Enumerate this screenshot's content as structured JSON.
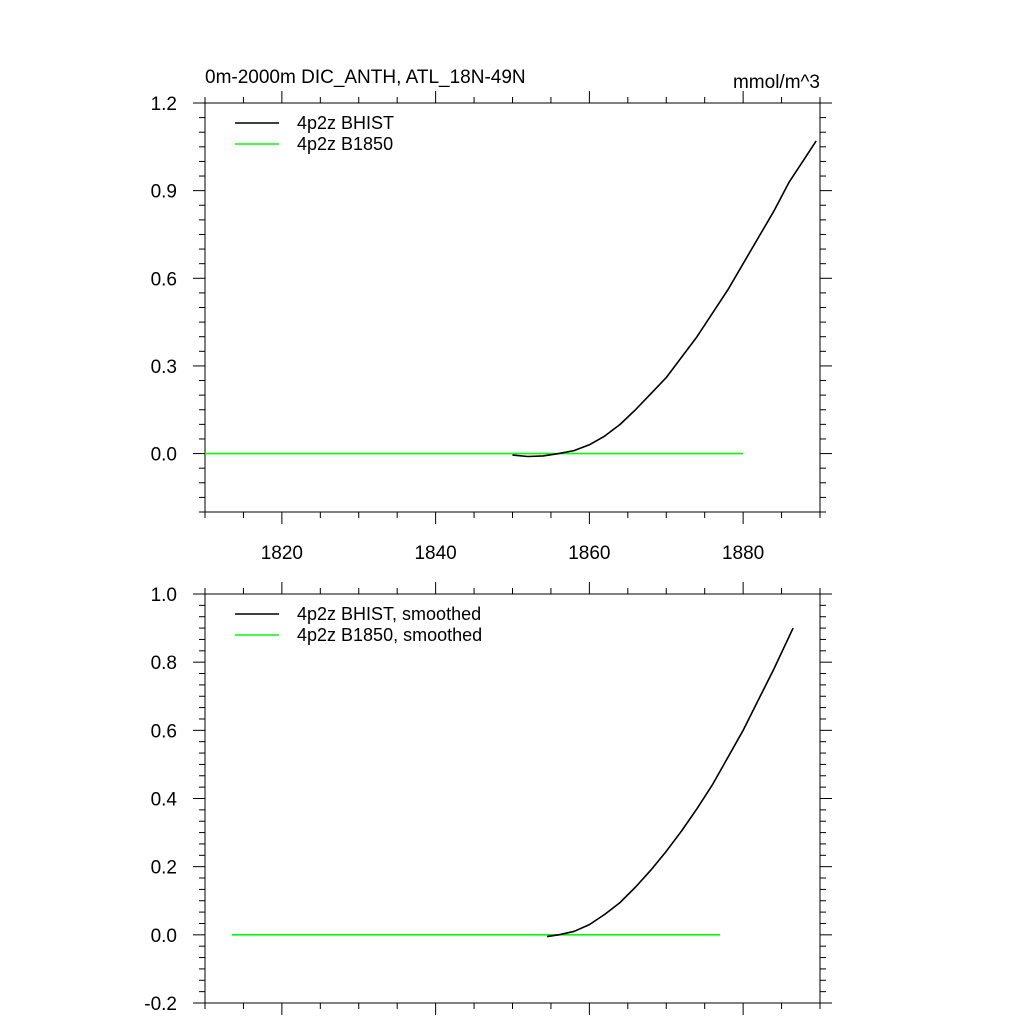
{
  "chart_data": [
    {
      "type": "line",
      "title": "0m-2000m DIC_ANTH, ATL_18N-49N",
      "units": "mmol/m^3",
      "xlim": [
        1810,
        1890
      ],
      "ylim": [
        -0.2,
        1.2
      ],
      "x_ticks": [
        1820,
        1840,
        1860,
        1880
      ],
      "x_tick_labels": [
        "1820",
        "1840",
        "1860",
        "1880"
      ],
      "y_ticks": [
        0.0,
        0.3,
        0.6,
        0.9,
        1.2
      ],
      "y_tick_labels": [
        "0.0",
        "0.3",
        "0.6",
        "0.9",
        "1.2"
      ],
      "legend_position": "top-left",
      "series": [
        {
          "name": "4p2z BHIST",
          "color": "#000000",
          "x": [
            1850,
            1852,
            1854,
            1856,
            1858,
            1860,
            1862,
            1864,
            1866,
            1868,
            1870,
            1872,
            1874,
            1876,
            1878,
            1880,
            1882,
            1884,
            1886,
            1888,
            1889.5
          ],
          "y": [
            -0.005,
            -0.01,
            -0.008,
            0.0,
            0.01,
            0.03,
            0.06,
            0.1,
            0.15,
            0.205,
            0.26,
            0.33,
            0.4,
            0.48,
            0.56,
            0.65,
            0.74,
            0.83,
            0.93,
            1.01,
            1.07
          ]
        },
        {
          "name": "4p2z B1850",
          "color": "#00ff00",
          "x": [
            1810,
            1820,
            1830,
            1840,
            1850,
            1860,
            1870,
            1880
          ],
          "y": [
            0,
            0,
            0,
            0,
            0,
            0,
            0,
            0
          ]
        }
      ]
    },
    {
      "type": "line",
      "title": "",
      "xlim": [
        1810,
        1890
      ],
      "ylim": [
        -0.2,
        1.0
      ],
      "x_ticks": [
        1820,
        1840,
        1860,
        1880
      ],
      "x_tick_labels": [],
      "y_ticks": [
        -0.2,
        0.0,
        0.2,
        0.4,
        0.6,
        0.8,
        1.0
      ],
      "y_tick_labels": [
        "-0.2",
        "0.0",
        "0.2",
        "0.4",
        "0.6",
        "0.8",
        "1.0"
      ],
      "legend_position": "top-left",
      "series": [
        {
          "name": "4p2z BHIST, smoothed",
          "color": "#000000",
          "x": [
            1854.5,
            1856,
            1858,
            1860,
            1862,
            1864,
            1866,
            1868,
            1870,
            1872,
            1874,
            1876,
            1878,
            1880,
            1882,
            1884,
            1886.5
          ],
          "y": [
            -0.005,
            0.0,
            0.01,
            0.03,
            0.06,
            0.095,
            0.14,
            0.19,
            0.245,
            0.305,
            0.37,
            0.44,
            0.52,
            0.6,
            0.69,
            0.78,
            0.9
          ]
        },
        {
          "name": "4p2z B1850, smoothed",
          "color": "#00ff00",
          "x": [
            1813.5,
            1820,
            1830,
            1840,
            1850,
            1860,
            1870,
            1877
          ],
          "y": [
            0,
            0,
            0,
            0,
            0,
            0,
            0,
            0
          ]
        }
      ]
    }
  ]
}
